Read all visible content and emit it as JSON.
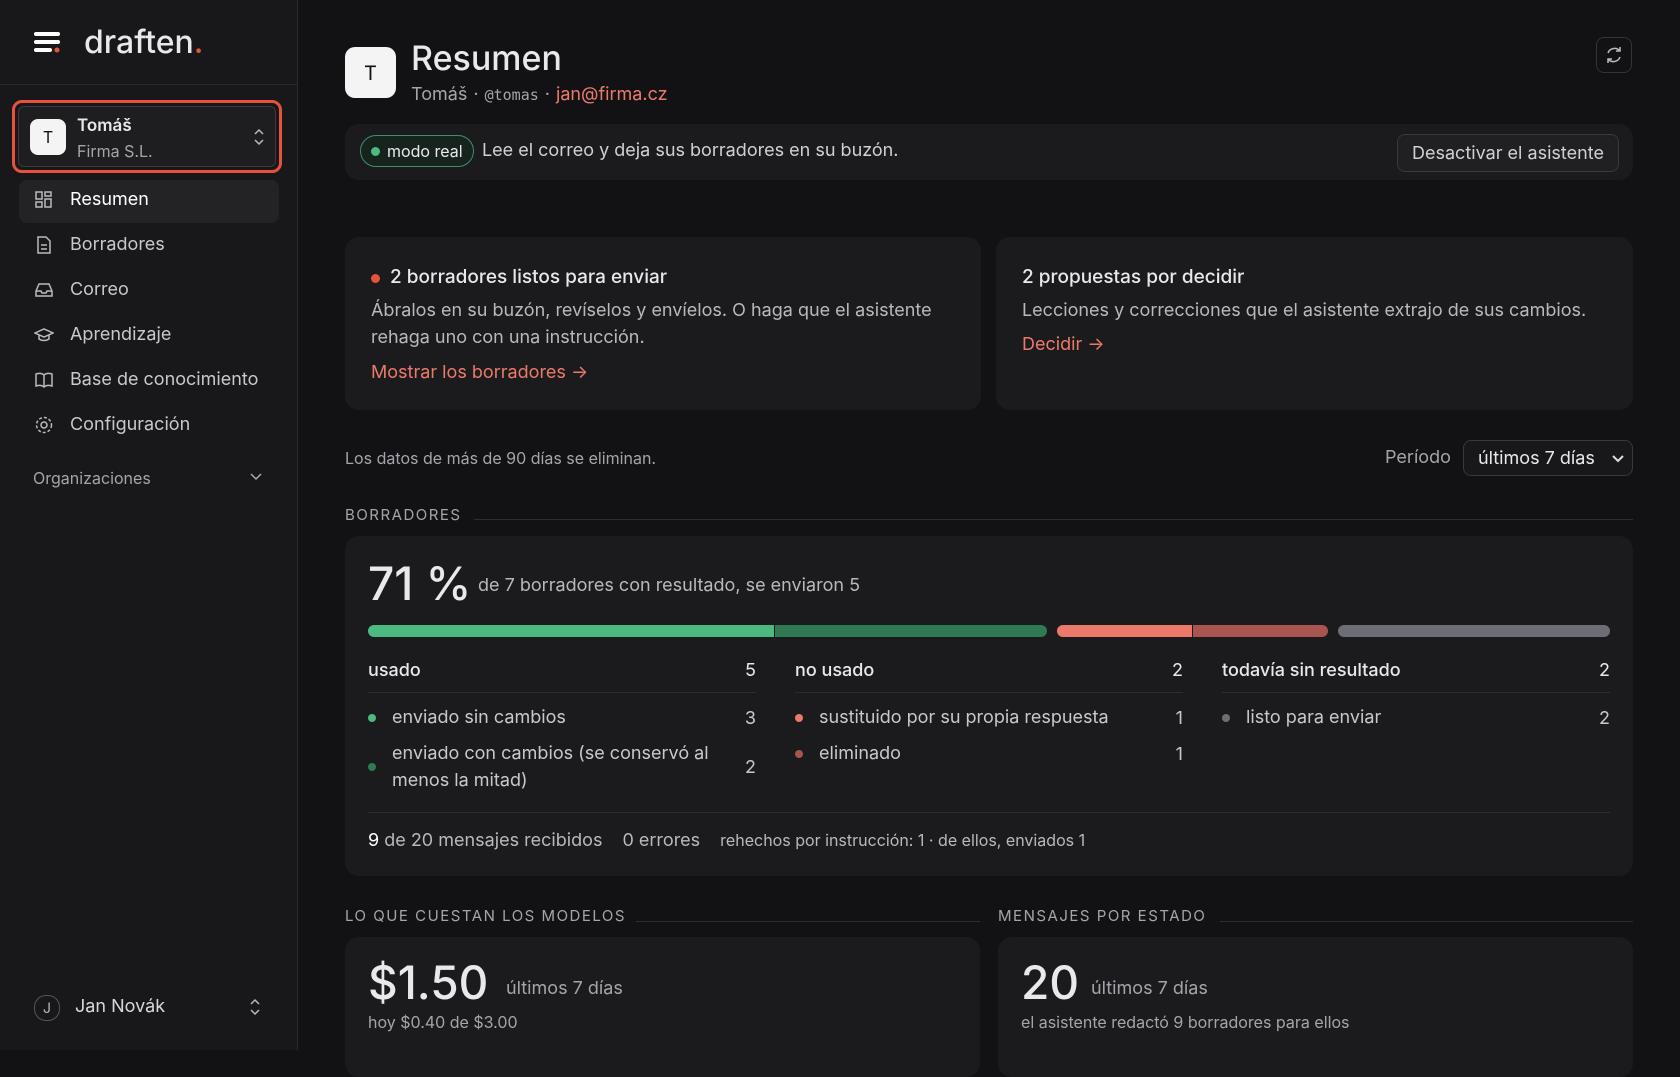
{
  "sidebar": {
    "brand": "draften",
    "brand_dot": ".",
    "account": {
      "avatar": "T",
      "name": "Tomáš",
      "org": "Firma S.L."
    },
    "nav": [
      "Resumen",
      "Borradores",
      "Correo",
      "Aprendizaje",
      "Base de conocimiento",
      "Configuración"
    ],
    "organizations": "Organizaciones",
    "user": {
      "avatar": "J",
      "name": "Jan Novák"
    }
  },
  "header": {
    "avatar": "T",
    "title": "Resumen",
    "name": "Tomáš",
    "separator": "·",
    "handle": "@tomas",
    "email": "jan@firma.cz"
  },
  "status": {
    "badge": "modo real",
    "text": "Lee el correo y deja sus borradores en su buzón.",
    "button": "Desactivar el asistente"
  },
  "cards": [
    {
      "title": "2 borradores listos para enviar",
      "text": "Ábralos en su buzón, revíselos y envíelos. O haga que el asistente rehaga uno con una instrucción.",
      "link": "Mostrar los borradores →"
    },
    {
      "title": "2 propuestas por decidir",
      "text": "Lecciones y correcciones que el asistente extrajo de sus cambios.",
      "link": "Decidir →"
    }
  ],
  "retention": "Los datos de más de 90 días se eliminan.",
  "period": {
    "label": "Período",
    "value": "últimos 7 días"
  },
  "drafts": {
    "section": "BORRADORES",
    "percent": "71 %",
    "summary": "de 7 borradores con resultado, se enviaron 5",
    "groups": [
      {
        "name": "usado",
        "total": 5,
        "items": [
          {
            "name": "enviado sin cambios",
            "count": 3,
            "color": "#4cba7f"
          },
          {
            "name": "enviado con cambios (se conservó al menos la mitad)",
            "count": 2,
            "color": "#2f7a52"
          }
        ]
      },
      {
        "name": "no usado",
        "total": 2,
        "items": [
          {
            "name": "sustituido por su propia respuesta",
            "count": 1,
            "color": "#ec7a6b"
          },
          {
            "name": "eliminado",
            "count": 1,
            "color": "#a9554f"
          }
        ]
      },
      {
        "name": "todavía sin resultado",
        "total": 2,
        "items": [
          {
            "name": "listo para enviar",
            "count": 2,
            "color": "#6d6d75"
          }
        ]
      }
    ],
    "footer": {
      "received_count": "9",
      "received": "de 20 mensajes recibidos",
      "errors": "0 errores",
      "redone": "rehechos por instrucción: 1 · de ellos, enviados 1"
    }
  },
  "costs": {
    "section": "LO QUE CUESTAN LOS MODELOS",
    "amount": "$1.50",
    "period": "últimos 7 días",
    "detail": "hoy $0.40 de $3.00"
  },
  "messages": {
    "section": "MENSAJES POR ESTADO",
    "count": "20",
    "period": "últimos 7 días",
    "detail": "el asistente redactó 9 borradores para ellos"
  }
}
